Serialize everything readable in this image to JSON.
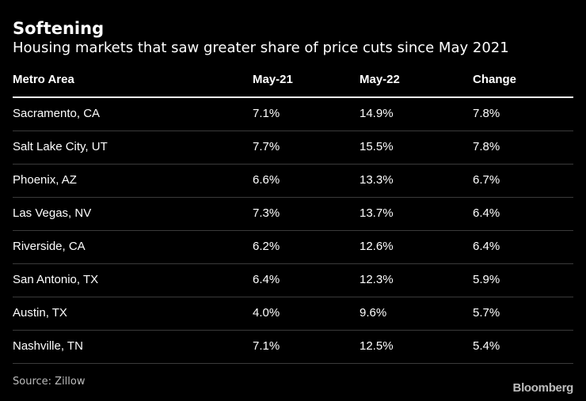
{
  "title": "Softening",
  "subtitle": "Housing markets that saw greater share of price cuts since May 2021",
  "source": "Source: Zillow",
  "brand": "Bloomberg",
  "chart_data": {
    "type": "table",
    "columns": [
      "Metro Area",
      "May-21",
      "May-22",
      "Change"
    ],
    "rows": [
      [
        "Sacramento, CA",
        "7.1%",
        "14.9%",
        "7.8%"
      ],
      [
        "Salt Lake City, UT",
        "7.7%",
        "15.5%",
        "7.8%"
      ],
      [
        "Phoenix, AZ",
        "6.6%",
        "13.3%",
        "6.7%"
      ],
      [
        "Las Vegas, NV",
        "7.3%",
        "13.7%",
        "6.4%"
      ],
      [
        "Riverside, CA",
        "6.2%",
        "12.6%",
        "6.4%"
      ],
      [
        "San Antonio, TX",
        "6.4%",
        "12.3%",
        "5.9%"
      ],
      [
        "Austin, TX",
        "4.0%",
        "9.6%",
        "5.7%"
      ],
      [
        "Nashville, TN",
        "7.1%",
        "12.5%",
        "5.4%"
      ]
    ]
  },
  "colors": {
    "background": "#000000",
    "text": "#ffffff",
    "muted": "#bdbdbd",
    "divider": "#3a3a3a"
  }
}
